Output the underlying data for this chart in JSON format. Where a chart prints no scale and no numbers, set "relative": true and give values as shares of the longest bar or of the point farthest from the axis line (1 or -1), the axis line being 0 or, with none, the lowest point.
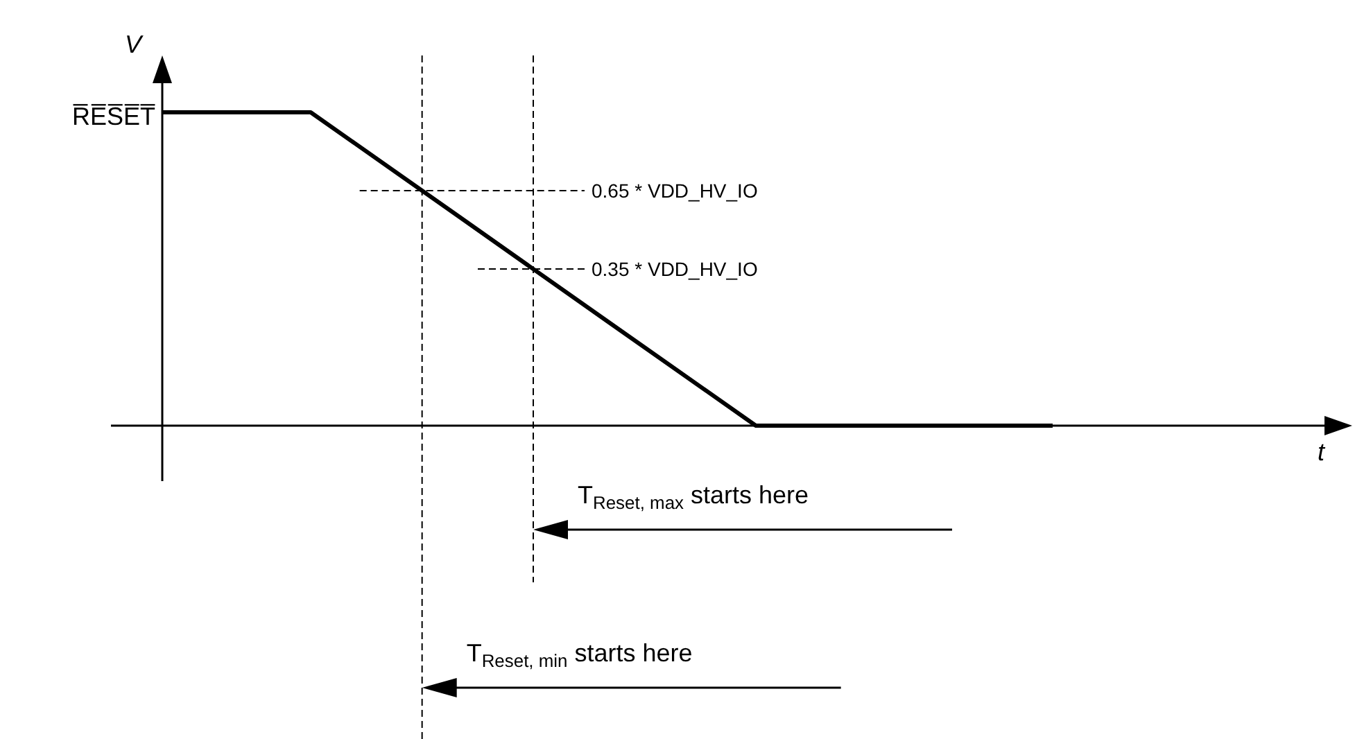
{
  "chart_data": {
    "type": "line",
    "relative": true,
    "ylabel": "V",
    "categories": [
      null,
      null,
      null,
      null,
      null,
      null,
      null
    ],
    "series": [
      {
        "color": "#000000",
        "values": [
          1,
          1,
          0.667,
          0.333,
          0,
          0,
          0
        ]
      }
    ],
    "ref_lines": [
      {
        "axis": "y",
        "value": 0.75,
        "label": "0.65 * VDD_HV_IO",
        "line_style": "dashed"
      },
      {
        "axis": "y",
        "value": 0.5,
        "label": "0.35 * VDD_HV_IO",
        "line_style": "dashed"
      }
    ],
    "annotations": [
      "R̅E̅S̅E̅T̅",
      "T$_{Reset, max}$  starts here",
      "T$_{Reset, min}$  starts here",
      "t"
    ]
  }
}
